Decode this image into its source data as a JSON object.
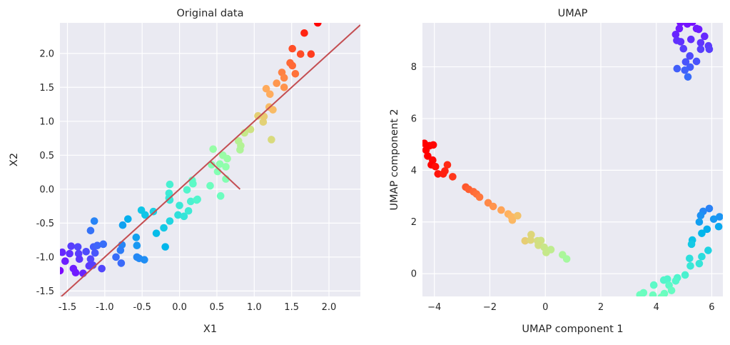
{
  "chart_data": [
    {
      "type": "scatter",
      "title": "Original data",
      "xlabel": "X1",
      "ylabel": "X2",
      "xlim": [
        -1.6,
        2.42
      ],
      "ylim": [
        -1.58,
        2.45
      ],
      "xticks": [
        "-1.5",
        "-1.0",
        "-0.5",
        "0.0",
        "0.5",
        "1.0",
        "1.5",
        "2.0"
      ],
      "yticks": [
        "-1.5",
        "-1.0",
        "-0.5",
        "0.0",
        "0.5",
        "1.0",
        "1.5",
        "2.0"
      ],
      "grid": true,
      "background": "#eaeaf2",
      "colormap": "rainbow",
      "lines": [
        {
          "points": [
            [
              -1.6,
              -1.6
            ],
            [
              2.42,
              2.42
            ]
          ],
          "color": "#c44e52"
        },
        {
          "points": [
            [
              0.41,
              0.41
            ],
            [
              0.81,
              0.0
            ]
          ],
          "color": "#c44e52"
        }
      ],
      "points": [
        [
          -1.14,
          -0.47
        ],
        [
          -1.19,
          -0.61
        ],
        [
          -0.76,
          -0.53
        ],
        [
          -0.69,
          -0.44
        ],
        [
          -0.51,
          -0.31
        ],
        [
          -0.46,
          -0.38
        ],
        [
          -0.35,
          -0.33
        ],
        [
          -0.58,
          -0.71
        ],
        [
          -0.57,
          -0.83
        ],
        [
          -0.77,
          -0.82
        ],
        [
          -0.79,
          -0.9
        ],
        [
          -0.85,
          -1.0
        ],
        [
          -0.78,
          -1.09
        ],
        [
          -0.57,
          -1.0
        ],
        [
          -0.54,
          -1.02
        ],
        [
          -0.47,
          -1.04
        ],
        [
          -0.31,
          -0.65
        ],
        [
          -0.21,
          -0.57
        ],
        [
          -0.13,
          -0.47
        ],
        [
          -0.19,
          -0.85
        ],
        [
          -0.13,
          -0.16
        ],
        [
          0.0,
          -0.24
        ],
        [
          -0.02,
          -0.38
        ],
        [
          0.06,
          -0.4
        ],
        [
          0.12,
          -0.32
        ],
        [
          0.15,
          -0.18
        ],
        [
          0.23,
          -0.16
        ],
        [
          -1.45,
          -0.84
        ],
        [
          -1.36,
          -0.85
        ],
        [
          -1.57,
          -0.93
        ],
        [
          -1.47,
          -0.95
        ],
        [
          -1.35,
          -0.95
        ],
        [
          -1.25,
          -0.92
        ],
        [
          -1.15,
          -0.85
        ],
        [
          -1.1,
          -0.83
        ],
        [
          -1.02,
          -0.81
        ],
        [
          -1.13,
          -0.94
        ],
        [
          -1.53,
          -1.06
        ],
        [
          -1.34,
          -1.03
        ],
        [
          -1.19,
          -1.03
        ],
        [
          -1.21,
          -1.13
        ],
        [
          -1.16,
          -1.12
        ],
        [
          -1.6,
          -1.2
        ],
        [
          -1.42,
          -1.17
        ],
        [
          -1.39,
          -1.23
        ],
        [
          -1.29,
          -1.24
        ],
        [
          -1.04,
          -1.17
        ],
        [
          -0.13,
          0.07
        ],
        [
          -0.14,
          -0.06
        ],
        [
          -0.14,
          -0.13
        ],
        [
          0.1,
          -0.01
        ],
        [
          0.17,
          0.13
        ],
        [
          0.18,
          0.08
        ],
        [
          0.24,
          -0.15
        ],
        [
          0.41,
          0.05
        ],
        [
          0.45,
          0.59
        ],
        [
          0.43,
          0.36
        ],
        [
          0.55,
          -0.1
        ],
        [
          0.54,
          0.37
        ],
        [
          0.58,
          0.5
        ],
        [
          0.64,
          0.45
        ],
        [
          0.62,
          0.33
        ],
        [
          0.51,
          0.26
        ],
        [
          0.62,
          0.15
        ],
        [
          0.79,
          0.71
        ],
        [
          0.82,
          0.64
        ],
        [
          0.81,
          0.58
        ],
        [
          0.87,
          0.83
        ],
        [
          0.95,
          0.88
        ],
        [
          1.23,
          0.73
        ],
        [
          1.12,
          0.99
        ],
        [
          1.05,
          1.08
        ],
        [
          1.13,
          1.07
        ],
        [
          1.85,
          2.45
        ],
        [
          1.67,
          2.3
        ],
        [
          1.51,
          2.07
        ],
        [
          1.62,
          1.99
        ],
        [
          1.76,
          1.99
        ],
        [
          1.48,
          1.86
        ],
        [
          1.51,
          1.82
        ],
        [
          1.37,
          1.72
        ],
        [
          1.4,
          1.64
        ],
        [
          1.55,
          1.7
        ],
        [
          1.3,
          1.56
        ],
        [
          1.4,
          1.5
        ],
        [
          1.16,
          1.48
        ],
        [
          1.21,
          1.4
        ],
        [
          1.2,
          1.21
        ],
        [
          1.25,
          1.17
        ]
      ]
    },
    {
      "type": "scatter",
      "title": "UMAP",
      "xlabel": "UMAP component 1",
      "ylabel": "UMAP component 2",
      "xlim": [
        -4.43,
        6.4
      ],
      "ylim": [
        -0.88,
        9.7
      ],
      "xticks": [
        "−4",
        "−2",
        "0",
        "2",
        "4",
        "6"
      ],
      "yticks": [
        "0",
        "2",
        "4",
        "6",
        "8"
      ],
      "grid": true,
      "background": "#eaeaf2",
      "colormap": "rainbow",
      "points": [
        [
          -4.36,
          5.04
        ],
        [
          -4.17,
          4.95
        ],
        [
          -4.04,
          4.98
        ],
        [
          -4.3,
          4.78
        ],
        [
          -4.24,
          4.55
        ],
        [
          -4.06,
          4.39
        ],
        [
          -4.11,
          4.21
        ],
        [
          -3.96,
          4.14
        ],
        [
          -3.53,
          4.21
        ],
        [
          -3.62,
          3.97
        ],
        [
          -3.87,
          3.86
        ],
        [
          -3.68,
          3.86
        ],
        [
          -3.34,
          3.75
        ],
        [
          -2.87,
          3.35
        ],
        [
          -2.76,
          3.26
        ],
        [
          -2.59,
          3.17
        ],
        [
          -2.48,
          3.08
        ],
        [
          -2.37,
          2.96
        ],
        [
          -2.06,
          2.74
        ],
        [
          -1.88,
          2.6
        ],
        [
          -1.59,
          2.46
        ],
        [
          -1.34,
          2.31
        ],
        [
          -1.22,
          2.2
        ],
        [
          -1.0,
          2.24
        ],
        [
          -1.19,
          2.07
        ],
        [
          -0.51,
          1.51
        ],
        [
          -0.73,
          1.27
        ],
        [
          -0.53,
          1.3
        ],
        [
          -0.28,
          1.27
        ],
        [
          -0.16,
          1.28
        ],
        [
          -0.25,
          1.1
        ],
        [
          -0.04,
          1.02
        ],
        [
          0.2,
          0.93
        ],
        [
          0.03,
          0.82
        ],
        [
          0.62,
          0.73
        ],
        [
          0.77,
          0.57
        ],
        [
          5.91,
          2.52
        ],
        [
          5.69,
          2.41
        ],
        [
          5.6,
          2.25
        ],
        [
          5.55,
          2.0
        ],
        [
          6.07,
          2.11
        ],
        [
          6.28,
          2.2
        ],
        [
          6.25,
          1.82
        ],
        [
          5.83,
          1.72
        ],
        [
          5.64,
          1.56
        ],
        [
          5.3,
          1.3
        ],
        [
          5.27,
          1.14
        ],
        [
          5.87,
          0.9
        ],
        [
          5.64,
          0.66
        ],
        [
          5.2,
          0.59
        ],
        [
          5.55,
          0.39
        ],
        [
          5.23,
          0.3
        ],
        [
          5.04,
          -0.05
        ],
        [
          4.76,
          -0.16
        ],
        [
          4.7,
          -0.28
        ],
        [
          4.4,
          -0.21
        ],
        [
          4.27,
          -0.25
        ],
        [
          4.46,
          -0.45
        ],
        [
          4.55,
          -0.65
        ],
        [
          3.91,
          -0.44
        ],
        [
          3.88,
          -0.83
        ],
        [
          4.29,
          -0.77
        ],
        [
          3.54,
          -0.74
        ],
        [
          3.41,
          -0.82
        ],
        [
          4.18,
          -0.91
        ],
        [
          4.87,
          9.71
        ],
        [
          5.12,
          9.66
        ],
        [
          5.3,
          9.73
        ],
        [
          4.83,
          9.48
        ],
        [
          5.45,
          9.48
        ],
        [
          5.53,
          9.45
        ],
        [
          4.7,
          9.25
        ],
        [
          4.74,
          9.02
        ],
        [
          4.88,
          8.97
        ],
        [
          5.25,
          9.06
        ],
        [
          5.74,
          9.18
        ],
        [
          5.6,
          8.93
        ],
        [
          5.88,
          8.81
        ],
        [
          5.91,
          8.68
        ],
        [
          5.6,
          8.68
        ],
        [
          4.98,
          8.7
        ],
        [
          5.21,
          8.42
        ],
        [
          5.45,
          8.21
        ],
        [
          5.06,
          8.19
        ],
        [
          5.22,
          7.99
        ],
        [
          4.75,
          7.93
        ],
        [
          5.03,
          7.87
        ],
        [
          5.14,
          7.61
        ]
      ]
    }
  ]
}
